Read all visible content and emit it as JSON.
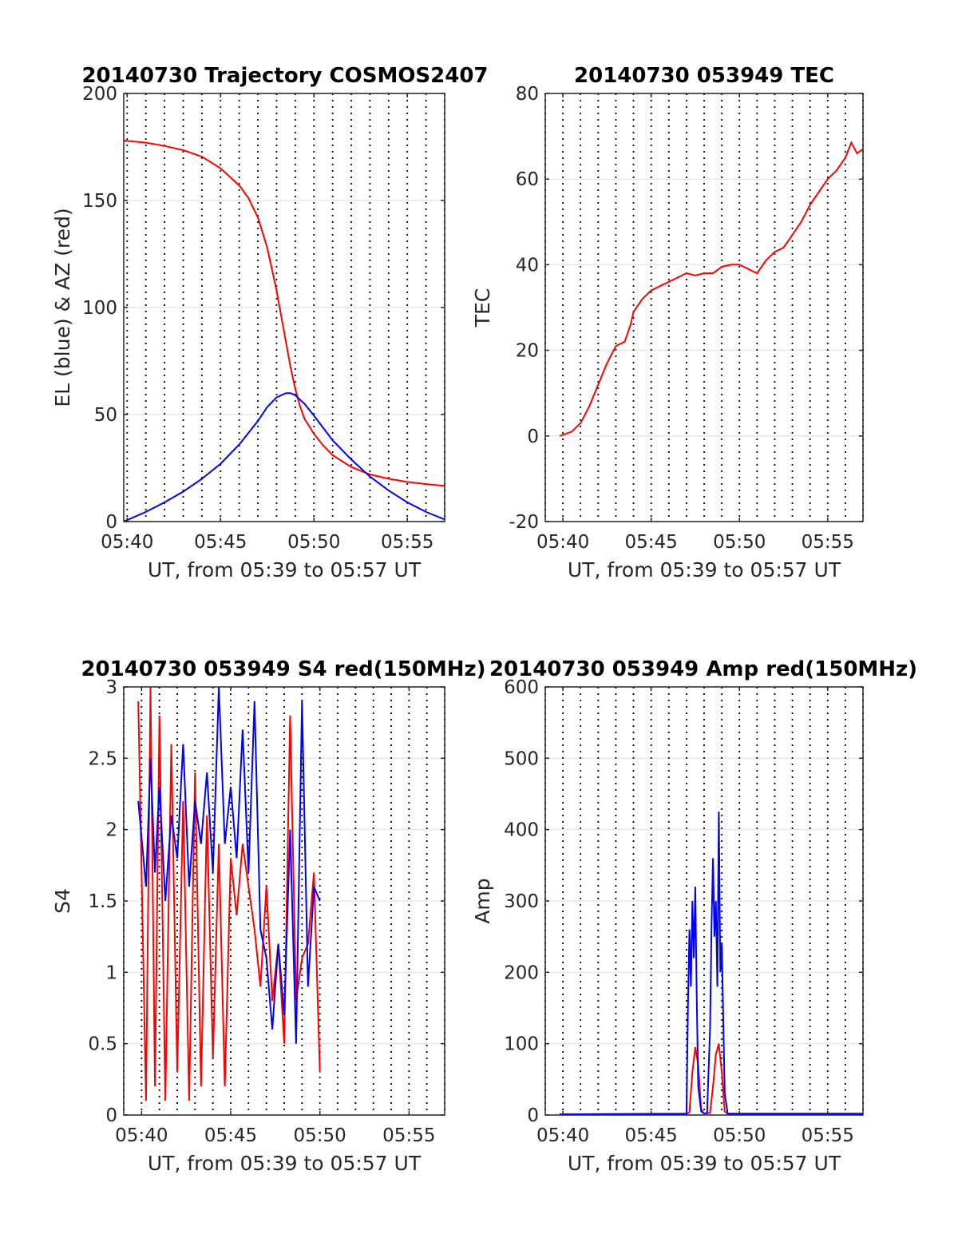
{
  "chart_data": [
    {
      "type": "line",
      "title": "20140730 Trajectory COSMOS2407",
      "xlabel": "UT, from 05:39 to 05:57 UT",
      "ylabel": "EL (blue) & AZ (red)",
      "xlim": [
        "05:39:49",
        "05:57:00"
      ],
      "ylim": [
        0,
        200
      ],
      "x_ticks": [
        "05:40",
        "05:45",
        "05:50",
        "05:55"
      ],
      "y_ticks": [
        "0",
        "50",
        "100",
        "150",
        "200"
      ],
      "grid": true,
      "minute_gridlines": "dotted",
      "series": [
        {
          "color": "#ff0000",
          "x": [
            "05:39:49",
            "05:41:00",
            "05:42:00",
            "05:43:00",
            "05:44:00",
            "05:45:00",
            "05:46:00",
            "05:46:30",
            "05:47:00",
            "05:47:30",
            "05:48:00",
            "05:48:30",
            "05:48:45",
            "05:49:00",
            "05:49:15",
            "05:49:30",
            "05:50:00",
            "05:50:30",
            "05:51:00",
            "05:52:00",
            "05:53:00",
            "05:54:00",
            "05:55:00",
            "05:56:00",
            "05:57:00"
          ],
          "values": [
            178,
            177,
            175.5,
            173.5,
            170.5,
            165,
            157,
            151,
            142,
            128,
            108,
            84,
            72,
            62,
            54,
            48,
            41,
            35.5,
            31,
            25.5,
            22,
            20,
            18.5,
            17.5,
            16.7
          ]
        },
        {
          "color": "#0000ff",
          "x": [
            "05:39:49",
            "05:41:00",
            "05:42:00",
            "05:43:00",
            "05:44:00",
            "05:45:00",
            "05:46:00",
            "05:47:00",
            "05:47:30",
            "05:48:00",
            "05:48:30",
            "05:48:45",
            "05:49:00",
            "05:49:30",
            "05:50:00",
            "05:51:00",
            "05:52:00",
            "05:53:00",
            "05:54:00",
            "05:55:00",
            "05:56:00",
            "05:57:00"
          ],
          "values": [
            0,
            4.5,
            9,
            14,
            20,
            27,
            36,
            47,
            53.5,
            58,
            60,
            60,
            59,
            55,
            49.5,
            38,
            29,
            21,
            14.5,
            9,
            4.5,
            1
          ]
        }
      ]
    },
    {
      "type": "line",
      "title": "20140730 053949 TEC",
      "xlabel": "UT, from 05:39 to 05:57 UT",
      "ylabel": "TEC",
      "xlim": [
        "05:39:00",
        "05:57:00"
      ],
      "ylim": [
        -20,
        80
      ],
      "x_ticks": [
        "05:40",
        "05:45",
        "05:50",
        "05:55"
      ],
      "y_ticks": [
        "-20",
        "0",
        "20",
        "40",
        "60",
        "80"
      ],
      "grid": true,
      "minute_gridlines": "dotted",
      "series": [
        {
          "color": "#ff0000",
          "x": [
            "05:39:49",
            "05:40:30",
            "05:41:00",
            "05:41:30",
            "05:42:00",
            "05:42:30",
            "05:43:00",
            "05:43:30",
            "05:43:50",
            "05:44:00",
            "05:44:30",
            "05:45:00",
            "05:45:30",
            "05:46:00",
            "05:46:30",
            "05:47:00",
            "05:47:30",
            "05:48:00",
            "05:48:30",
            "05:49:00",
            "05:49:30",
            "05:50:00",
            "05:50:30",
            "05:51:00",
            "05:51:30",
            "05:52:00",
            "05:52:30",
            "05:53:00",
            "05:53:30",
            "05:54:00",
            "05:54:30",
            "05:55:00",
            "05:55:30",
            "05:56:00",
            "05:56:20",
            "05:56:40",
            "05:57:00"
          ],
          "values": [
            0,
            1,
            3,
            7,
            12,
            17,
            21,
            22,
            26,
            29,
            32,
            34,
            35,
            36,
            37,
            38,
            37.5,
            38,
            38,
            39.5,
            40,
            40,
            39,
            38,
            41,
            43,
            44,
            47,
            50,
            54,
            57,
            60,
            62,
            65,
            68.5,
            66,
            67
          ]
        }
      ]
    },
    {
      "type": "line",
      "title": "20140730 053949 S4 red(150MHz)",
      "xlabel": "UT, from 05:39 to 05:57 UT",
      "ylabel": "S4",
      "xlim": [
        "05:39:00",
        "05:57:00"
      ],
      "ylim": [
        0,
        3
      ],
      "x_ticks": [
        "05:40",
        "05:45",
        "05:50",
        "05:55"
      ],
      "y_ticks": [
        "0",
        "0.5",
        "1",
        "1.5",
        "2",
        "2.5",
        "3"
      ],
      "grid": true,
      "minute_gridlines": "dotted",
      "series": [
        {
          "color": "#ff0000",
          "x": [
            "05:39:49",
            "05:40:15",
            "05:40:30",
            "05:40:45",
            "05:41:00",
            "05:41:20",
            "05:41:40",
            "05:42:00",
            "05:42:20",
            "05:42:40",
            "05:43:00",
            "05:43:20",
            "05:43:40",
            "05:44:00",
            "05:44:20",
            "05:44:40",
            "05:45:00",
            "05:45:20",
            "05:45:40",
            "05:46:00",
            "05:46:20",
            "05:46:40",
            "05:47:00",
            "05:47:20",
            "05:47:40",
            "05:48:00",
            "05:48:20",
            "05:48:40",
            "05:49:00",
            "05:49:20",
            "05:49:40",
            "05:50:00"
          ],
          "values": [
            2.9,
            0.1,
            3,
            0.2,
            2.8,
            0.1,
            2.6,
            0.3,
            2.2,
            0.1,
            2.4,
            0.2,
            2.1,
            0.4,
            1.9,
            0.2,
            1.8,
            1.4,
            1.9,
            1.6,
            1.3,
            0.9,
            1.6,
            0.8,
            1.2,
            0.5,
            2.8,
            0.8,
            1.1,
            1.2,
            1.7,
            0.3
          ]
        },
        {
          "color": "#0000ff",
          "x": [
            "05:39:49",
            "05:40:15",
            "05:40:30",
            "05:40:45",
            "05:41:00",
            "05:41:20",
            "05:41:40",
            "05:42:00",
            "05:42:20",
            "05:42:40",
            "05:43:00",
            "05:43:20",
            "05:43:40",
            "05:44:00",
            "05:44:20",
            "05:44:40",
            "05:45:00",
            "05:45:20",
            "05:45:40",
            "05:46:00",
            "05:46:20",
            "05:46:40",
            "05:47:00",
            "05:47:20",
            "05:47:40",
            "05:48:00",
            "05:48:20",
            "05:48:40",
            "05:49:00",
            "05:49:20",
            "05:49:40",
            "05:50:00"
          ],
          "values": [
            2.2,
            1.6,
            2.5,
            1.7,
            2.3,
            1.5,
            2.1,
            1.8,
            2.6,
            1.6,
            2.2,
            1.9,
            2.4,
            1.7,
            3,
            1.9,
            2.3,
            1.8,
            2.7,
            1.7,
            2.9,
            1.3,
            1.1,
            0.6,
            1.2,
            0.7,
            2,
            0.5,
            2.9,
            0.9,
            1.6,
            1.5
          ]
        }
      ]
    },
    {
      "type": "line",
      "title": "20140730 053949 Amp red(150MHz)",
      "xlabel": "UT, from 05:39 to 05:57 UT",
      "ylabel": "Amp",
      "xlim": [
        "05:39:00",
        "05:57:00"
      ],
      "ylim": [
        0,
        600
      ],
      "x_ticks": [
        "05:40",
        "05:45",
        "05:50",
        "05:55"
      ],
      "y_ticks": [
        "0",
        "100",
        "200",
        "300",
        "400",
        "500",
        "600"
      ],
      "grid": true,
      "minute_gridlines": "dotted",
      "series": [
        {
          "color": "#ff0000",
          "x": [
            "05:39:49",
            "05:47:00",
            "05:47:10",
            "05:47:20",
            "05:47:30",
            "05:47:40",
            "05:47:50",
            "05:48:00",
            "05:48:20",
            "05:48:30",
            "05:48:40",
            "05:48:50",
            "05:49:00",
            "05:49:10",
            "05:49:20",
            "05:49:30",
            "05:57:00"
          ],
          "values": [
            1,
            1,
            4,
            60,
            95,
            70,
            8,
            2,
            3,
            40,
            85,
            100,
            60,
            5,
            2,
            1,
            1
          ]
        },
        {
          "color": "#0000ff",
          "x": [
            "05:39:49",
            "05:47:00",
            "05:47:05",
            "05:47:10",
            "05:47:15",
            "05:47:20",
            "05:47:25",
            "05:47:30",
            "05:47:35",
            "05:47:40",
            "05:47:50",
            "05:48:00",
            "05:48:10",
            "05:48:20",
            "05:48:25",
            "05:48:30",
            "05:48:35",
            "05:48:40",
            "05:48:45",
            "05:48:50",
            "05:48:55",
            "05:49:00",
            "05:49:10",
            "05:49:20",
            "05:57:00"
          ],
          "values": [
            1,
            2,
            150,
            260,
            180,
            300,
            220,
            320,
            160,
            40,
            5,
            2,
            3,
            120,
            260,
            360,
            250,
            300,
            180,
            425,
            200,
            240,
            30,
            2,
            2
          ]
        }
      ]
    }
  ]
}
